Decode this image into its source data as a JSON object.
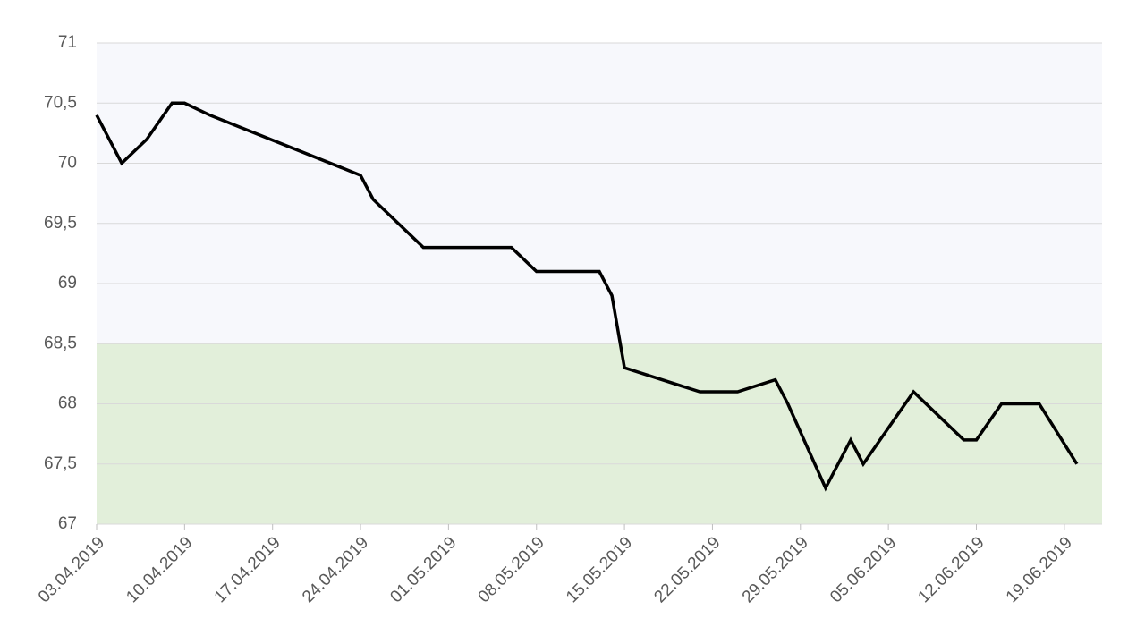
{
  "chart_data": {
    "type": "line",
    "x": [
      "03.04.2019",
      "05.04.2019",
      "07.04.2019",
      "09.04.2019",
      "10.04.2019",
      "12.04.2019",
      "24.04.2019",
      "25.04.2019",
      "29.04.2019",
      "06.05.2019",
      "08.05.2019",
      "13.05.2019",
      "14.05.2019",
      "15.05.2019",
      "21.05.2019",
      "24.05.2019",
      "27.05.2019",
      "28.05.2019",
      "31.05.2019",
      "02.06.2019",
      "03.06.2019",
      "07.06.2019",
      "11.06.2019",
      "12.06.2019",
      "14.06.2019",
      "17.06.2019",
      "20.06.2019"
    ],
    "series": [
      {
        "color": "#000000",
        "values": [
          70.4,
          70.0,
          70.2,
          70.5,
          70.5,
          70.4,
          69.9,
          69.7,
          69.3,
          69.3,
          69.1,
          69.1,
          68.9,
          68.3,
          68.1,
          68.1,
          68.2,
          68.0,
          67.3,
          67.7,
          67.5,
          68.1,
          67.7,
          67.7,
          68.0,
          68.0,
          67.5
        ]
      }
    ],
    "xlim": [
      "03.04.2019",
      "22.06.2019"
    ],
    "xticks": [
      "03.04.2019",
      "10.04.2019",
      "17.04.2019",
      "24.04.2019",
      "01.05.2019",
      "08.05.2019",
      "15.05.2019",
      "22.05.2019",
      "29.05.2019",
      "05.06.2019",
      "12.06.2019",
      "19.06.2019"
    ],
    "ylim": [
      67,
      71
    ],
    "yticks": [
      67,
      {
        "value": 67.5,
        "label": "67,5"
      },
      68,
      {
        "value": 68.5,
        "label": "68,5"
      },
      69,
      {
        "value": 69.5,
        "label": "69,5"
      },
      70,
      {
        "value": 70.5,
        "label": "70,5"
      },
      71
    ],
    "bands": [
      {
        "from": 67,
        "to": 68.5,
        "color": "#e2efda"
      },
      {
        "from": 68.5,
        "to": 71,
        "color": "#f7f8fc"
      }
    ],
    "grid": true
  }
}
